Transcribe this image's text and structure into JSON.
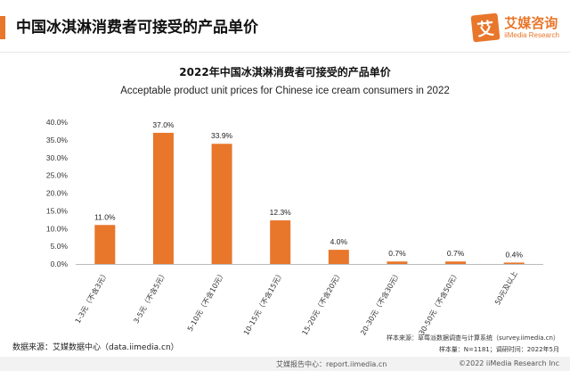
{
  "header": {
    "title": "中国冰淇淋消费者可接受的产品单价",
    "logo_mark": "艾",
    "logo_cn": "艾媒咨询",
    "logo_en": "iiMedia Research"
  },
  "chart_data": {
    "type": "bar",
    "title": "2022年中国冰淇淋消费者可接受的产品单价",
    "subtitle": "Acceptable product unit prices for Chinese ice cream consumers in 2022",
    "categories": [
      "1-3元（不含3元）",
      "3-5元（不含5元）",
      "5-10元（不含10元）",
      "10-15元（不含15元）",
      "15-20元（不含20元）",
      "20-30元（不含30元）",
      "30-50元（不含50元）",
      "50元及以上"
    ],
    "values": [
      11.0,
      37.0,
      33.9,
      12.3,
      4.0,
      0.7,
      0.7,
      0.4
    ],
    "value_labels": [
      "11.0%",
      "37.0%",
      "33.9%",
      "12.3%",
      "4.0%",
      "0.7%",
      "0.7%",
      "0.4%"
    ],
    "ylim": [
      0,
      40
    ],
    "yticks": [
      "0.0%",
      "5.0%",
      "10.0%",
      "15.0%",
      "20.0%",
      "25.0%",
      "30.0%",
      "35.0%",
      "40.0%"
    ],
    "bar_color": "#e8762b",
    "grid": false,
    "xlabel": "",
    "ylabel": ""
  },
  "footer": {
    "source": "数据来源：艾媒数据中心（data.iimedia.cn）",
    "sample_source": "样本来源：草莓派数据调查与计算系统（survey.iimedia.cn）",
    "sample_size": "样本量：N=1181；调研时间：2022年5月",
    "report_center": "艾媒报告中心：report.iimedia.cn",
    "copyright": "©2022  iiMedia Research Inc"
  },
  "colors": {
    "accent": "#e8762b"
  }
}
